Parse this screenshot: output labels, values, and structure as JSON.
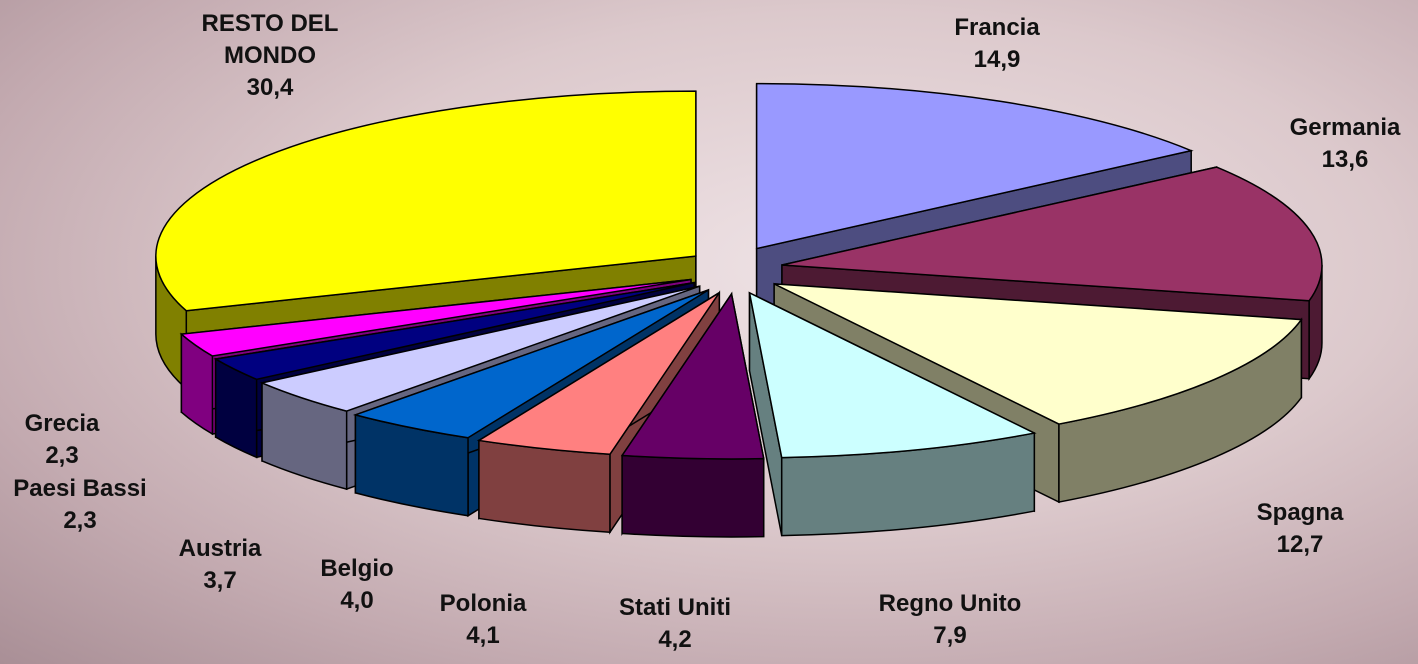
{
  "chart_data": {
    "type": "pie",
    "categories": [
      "Francia",
      "Germania",
      "Spagna",
      "Regno Unito",
      "Stati Uniti",
      "Polonia",
      "Belgio",
      "Austria",
      "Paesi Bassi",
      "Grecia",
      "RESTO DEL MONDO"
    ],
    "values": [
      14.9,
      13.6,
      12.7,
      7.9,
      4.2,
      4.1,
      4.0,
      3.7,
      2.3,
      2.3,
      30.4
    ],
    "value_labels": [
      "14,9",
      "13,6",
      "12,7",
      "7,9",
      "4,2",
      "4,1",
      "4,0",
      "3,7",
      "2,3",
      "2,3",
      "30,4"
    ],
    "colors": [
      "#9999ff",
      "#993366",
      "#ffffcc",
      "#ccffff",
      "#660066",
      "#ff8080",
      "#0066cc",
      "#ccccff",
      "#000080",
      "#ff00ff",
      "#ffff00"
    ]
  }
}
